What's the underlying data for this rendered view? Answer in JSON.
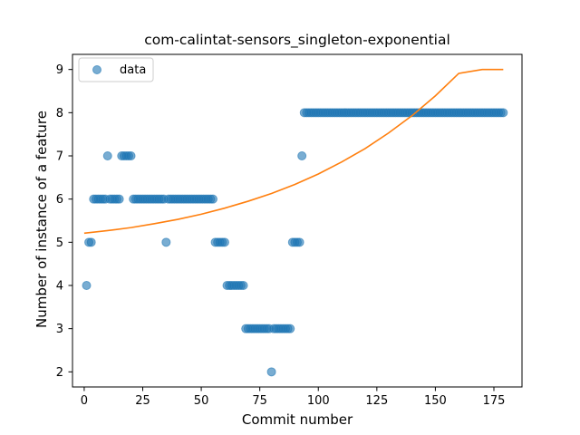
{
  "chart_data": {
    "type": "scatter",
    "title": "com-calintat-sensors_singleton-exponential",
    "xlabel": "Commit number",
    "ylabel": "Number of instance of a feature",
    "xlim": [
      -5,
      187
    ],
    "ylim": [
      1.65,
      9.35
    ],
    "xticks": [
      0,
      25,
      50,
      75,
      100,
      125,
      150,
      175
    ],
    "yticks": [
      2,
      3,
      4,
      5,
      6,
      7,
      8,
      9
    ],
    "grid": false,
    "legend": {
      "position": "top-left",
      "entries": [
        "data"
      ]
    },
    "colors": {
      "scatter": "#1f77b4",
      "fit": "#ff7f0e"
    },
    "series": [
      {
        "name": "data",
        "type": "scatter",
        "x": [
          1,
          2,
          3,
          4,
          5,
          6,
          7,
          8,
          9,
          10,
          11,
          12,
          13,
          14,
          15,
          16,
          17,
          18,
          19,
          20,
          21,
          22,
          23,
          24,
          25,
          26,
          27,
          28,
          29,
          30,
          31,
          32,
          33,
          34,
          35,
          36,
          37,
          38,
          39,
          40,
          41,
          42,
          43,
          44,
          45,
          46,
          47,
          48,
          49,
          50,
          51,
          52,
          53,
          54,
          55,
          56,
          57,
          58,
          59,
          60,
          61,
          62,
          63,
          64,
          65,
          66,
          67,
          68,
          69,
          70,
          71,
          72,
          73,
          74,
          75,
          76,
          77,
          78,
          79,
          80,
          81,
          82,
          83,
          84,
          85,
          86,
          87,
          88,
          89,
          90,
          91,
          92,
          93,
          94,
          95,
          96,
          97,
          98,
          99,
          100,
          101,
          102,
          103,
          104,
          105,
          106,
          107,
          108,
          109,
          110,
          111,
          112,
          113,
          114,
          115,
          116,
          117,
          118,
          119,
          120,
          121,
          122,
          123,
          124,
          125,
          126,
          127,
          128,
          129,
          130,
          131,
          132,
          133,
          134,
          135,
          136,
          137,
          138,
          139,
          140,
          141,
          142,
          143,
          144,
          145,
          146,
          147,
          148,
          149,
          150,
          151,
          152,
          153,
          154,
          155,
          156,
          157,
          158,
          159,
          160,
          161,
          162,
          163,
          164,
          165,
          166,
          167,
          168,
          169,
          170,
          171,
          172,
          173,
          174,
          175,
          176,
          177,
          178,
          179
        ],
        "y": [
          4,
          5,
          5,
          6,
          6,
          6,
          6,
          6,
          6,
          7,
          6,
          6,
          6,
          6,
          6,
          7,
          7,
          7,
          7,
          7,
          6,
          6,
          6,
          6,
          6,
          6,
          6,
          6,
          6,
          6,
          6,
          6,
          6,
          6,
          5,
          6,
          6,
          6,
          6,
          6,
          6,
          6,
          6,
          6,
          6,
          6,
          6,
          6,
          6,
          6,
          6,
          6,
          6,
          6,
          6,
          5,
          5,
          5,
          5,
          5,
          4,
          4,
          4,
          4,
          4,
          4,
          4,
          4,
          3,
          3,
          3,
          3,
          3,
          3,
          3,
          3,
          3,
          3,
          3,
          2,
          3,
          3,
          3,
          3,
          3,
          3,
          3,
          3,
          5,
          5,
          5,
          5,
          7,
          8,
          8,
          8,
          8,
          8,
          8,
          8,
          8,
          8,
          8,
          8,
          8,
          8,
          8,
          8,
          8,
          8,
          8,
          8,
          8,
          8,
          8,
          8,
          8,
          8,
          8,
          8,
          8,
          8,
          8,
          8,
          8,
          8,
          8,
          8,
          8,
          8,
          8,
          8,
          8,
          8,
          8,
          8,
          8,
          8,
          8,
          8,
          8,
          8,
          8,
          8,
          8,
          8,
          8,
          8,
          8,
          8,
          8,
          8,
          8,
          8,
          8,
          8,
          8,
          8,
          8,
          8,
          8,
          8,
          8,
          8,
          8,
          8,
          8,
          8,
          8,
          8,
          8,
          8,
          8,
          8,
          8,
          8,
          8,
          8,
          8
        ]
      },
      {
        "type": "line",
        "x": [
          0,
          10,
          20,
          30,
          40,
          50,
          60,
          70,
          80,
          90,
          100,
          110,
          120,
          130,
          140,
          150,
          160,
          170,
          179
        ],
        "y": [
          5.21,
          5.27,
          5.34,
          5.43,
          5.53,
          5.65,
          5.79,
          5.95,
          6.13,
          6.34,
          6.58,
          6.86,
          7.17,
          7.53,
          7.93,
          8.39,
          8.91,
          9.0,
          9.0
        ]
      }
    ]
  }
}
